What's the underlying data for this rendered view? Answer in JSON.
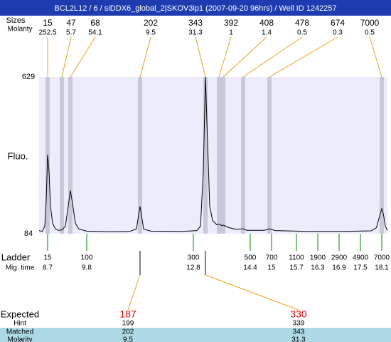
{
  "header": {
    "title": "BCL2L12 / 6 / siDDX6_global_2|SKOV3ip1 (2007-09-20 96hrs) / Well ID 1242257"
  },
  "chart_data": {
    "type": "electropherogram",
    "y_label": "Fluo.",
    "ylim": [
      84,
      629
    ],
    "yticks": [
      84,
      629
    ],
    "xlim": [
      8.46,
      18.26
    ],
    "band_color": "#c8c8da",
    "plot_color": "#ececfa",
    "line_color": "#000000",
    "leader_color": "#f0a020",
    "ladder_color": "#008000",
    "peak_row_labels": [
      "Sizes",
      "Molarity"
    ],
    "peaks": {
      "sizes": [
        15,
        47,
        68,
        202,
        343,
        392,
        408,
        478,
        674,
        7000
      ],
      "molarity": [
        252.5,
        5.7,
        54.1,
        9.5,
        31.3,
        1,
        1.4,
        0.5,
        0.3,
        0.5
      ],
      "mig_time": [
        8.7,
        9.1,
        9.34,
        11.3,
        13.14,
        13.52,
        13.64,
        14.2,
        14.94,
        18.1
      ]
    },
    "ladder": {
      "label": "Ladder",
      "time_label": "Mig. time",
      "sizes": [
        15,
        100,
        300,
        500,
        700,
        1100,
        1900,
        2900,
        4900,
        7000
      ],
      "mig_time": [
        8.7,
        9.8,
        12.8,
        14.4,
        15,
        15.7,
        16.3,
        16.9,
        17.5,
        18.1
      ]
    },
    "trace": {
      "x": [
        8.46,
        8.55,
        8.62,
        8.66,
        8.7,
        8.74,
        8.78,
        8.84,
        8.92,
        9.0,
        9.1,
        9.2,
        9.28,
        9.34,
        9.4,
        9.48,
        9.58,
        9.8,
        10.5,
        11.0,
        11.2,
        11.26,
        11.3,
        11.34,
        11.4,
        11.6,
        12.5,
        12.9,
        13.0,
        13.08,
        13.14,
        13.2,
        13.26,
        13.34,
        13.46,
        13.52,
        13.6,
        13.64,
        13.8,
        14.0,
        14.2,
        14.3,
        14.8,
        14.94,
        15.1,
        16.0,
        17.0,
        17.8,
        17.95,
        18.05,
        18.1,
        18.15,
        18.2,
        18.26
      ],
      "y": [
        95,
        92,
        110,
        200,
        359,
        300,
        180,
        120,
        100,
        96,
        97,
        110,
        180,
        234,
        190,
        120,
        100,
        93,
        91,
        92,
        100,
        150,
        179,
        150,
        100,
        93,
        92,
        95,
        110,
        300,
        629,
        400,
        180,
        130,
        115,
        118,
        112,
        114,
        105,
        99,
        101,
        96,
        96,
        101,
        95,
        92,
        92,
        94,
        105,
        150,
        171,
        150,
        110,
        95
      ]
    }
  },
  "expected_table": {
    "labels": [
      "Expected",
      "Hint",
      "Matched",
      "Molarity"
    ],
    "expected": [
      187,
      330
    ],
    "hint": [
      199,
      339
    ],
    "matched": [
      202,
      343
    ],
    "molarity": [
      9.5,
      31.3
    ]
  }
}
